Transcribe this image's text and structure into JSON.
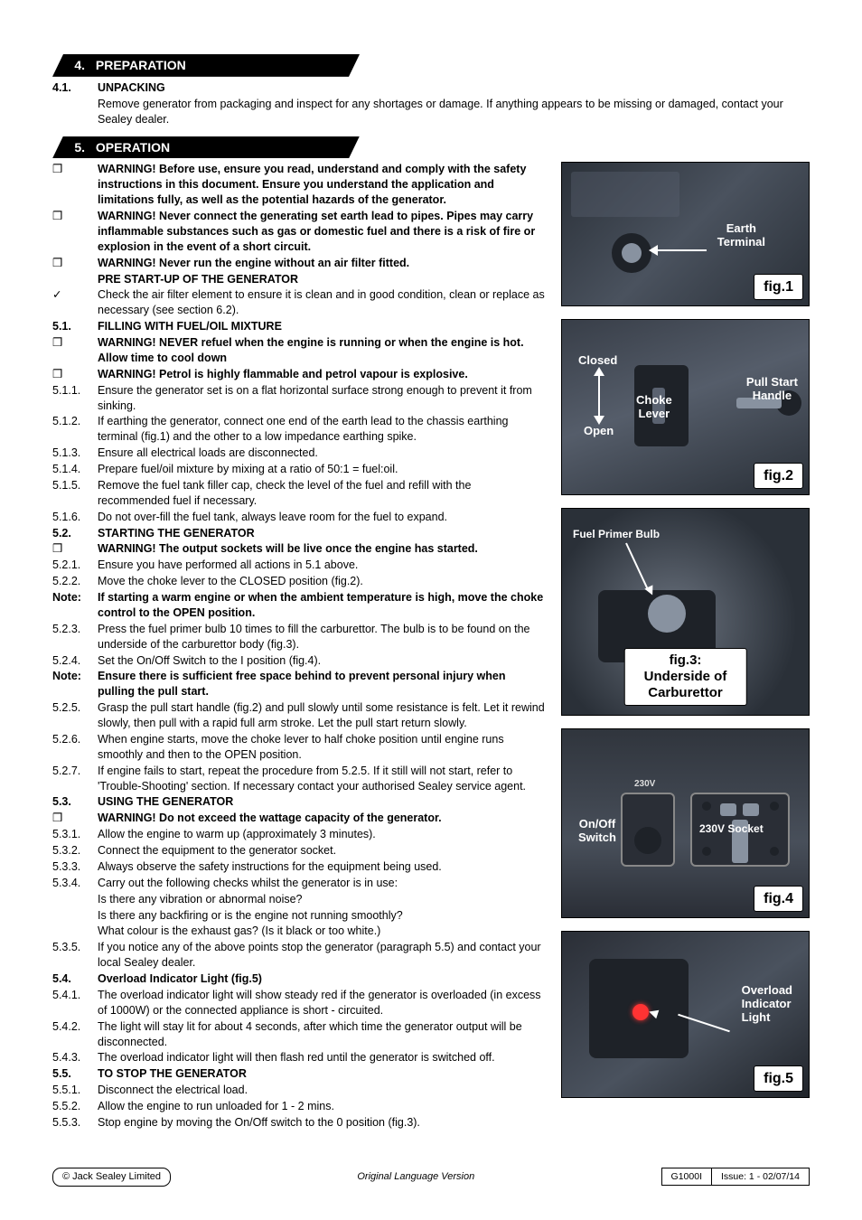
{
  "sections": {
    "s4": {
      "num": "4.",
      "title": "PREPARATION"
    },
    "s5": {
      "num": "5.",
      "title": "OPERATION"
    }
  },
  "s4_items": [
    {
      "num": "4.1.",
      "numBold": true,
      "bold": true,
      "text": "UNPACKING"
    },
    {
      "num": "",
      "text": "Remove generator from packaging and inspect for any shortages or damage. If anything appears to be missing or damaged, contact your Sealey dealer."
    }
  ],
  "s5_items": [
    {
      "num": "❒",
      "bold": true,
      "text": "WARNING! Before use, ensure you read, understand and comply with the safety instructions in this document. Ensure you understand the application and limitations fully, as well as the potential hazards of the generator."
    },
    {
      "num": "❒",
      "bold": true,
      "text": "WARNING! Never connect the generating set earth lead to pipes. Pipes may carry inflammable substances such as gas or domestic fuel and there is a risk of fire or explosion in the event of a short circuit."
    },
    {
      "num": "❒",
      "bold": true,
      "text": "WARNING! Never run the engine without an air filter fitted."
    },
    {
      "num": "",
      "bold": true,
      "text": "PRE START-UP OF THE GENERATOR"
    },
    {
      "num": "✓",
      "numClass": "check",
      "text": "Check the air filter element to ensure it is clean and in good condition, clean or replace as necessary (see section 6.2)."
    },
    {
      "num": "5.1.",
      "numBold": true,
      "bold": true,
      "text": "FILLING WITH FUEL/OIL MIXTURE"
    },
    {
      "num": "❒",
      "bold": true,
      "text": "WARNING! NEVER refuel when the engine is running or when the engine is hot.  Allow time to cool down"
    },
    {
      "num": "❒",
      "bold": true,
      "text": "WARNING! Petrol is highly flammable and petrol vapour is explosive."
    },
    {
      "num": "5.1.1.",
      "text": "Ensure the generator set is on a flat horizontal surface strong enough to prevent it from sinking."
    },
    {
      "num": "5.1.2.",
      "text": "If earthing the generator, connect one end of the earth lead to the chassis earthing terminal (fig.1) and the other to a low impedance earthing spike."
    },
    {
      "num": "5.1.3.",
      "text": "Ensure all electrical loads are disconnected."
    },
    {
      "num": "5.1.4.",
      "text": "Prepare fuel/oil mixture by mixing at a ratio of 50:1 = fuel:oil."
    },
    {
      "num": "5.1.5.",
      "text": "Remove the fuel tank filler cap, check the level of the fuel and refill with the recommended fuel if necessary."
    },
    {
      "num": "5.1.6.",
      "text": "Do not over-fill the fuel tank, always leave room for the fuel to expand."
    },
    {
      "num": "5.2.",
      "numBold": true,
      "bold": true,
      "text": "STARTING THE GENERATOR"
    },
    {
      "num": "❒",
      "bold": true,
      "text": "WARNING! The output sockets will be live once the engine has started."
    },
    {
      "num": "5.2.1.",
      "text": "Ensure you have performed all actions in 5.1 above."
    },
    {
      "num": "5.2.2.",
      "text": "Move the choke lever to the CLOSED position (fig.2)."
    },
    {
      "num": "Note:",
      "numBold": true,
      "bold": true,
      "text": "If starting a warm engine or when the ambient temperature is high, move the choke control to the OPEN position."
    },
    {
      "num": "5.2.3.",
      "text": "Press the fuel primer bulb 10 times to fill the carburettor. The bulb is to be found on the underside of the carburettor body (fig.3)."
    },
    {
      "num": "5.2.4.",
      "text": "Set the On/Off Switch to the I position (fig.4)."
    },
    {
      "num": "Note:",
      "numBold": true,
      "bold": true,
      "text": "Ensure there is sufficient free space behind to prevent personal injury when pulling the pull start."
    },
    {
      "num": "5.2.5.",
      "text": "Grasp the pull start handle (fig.2) and pull slowly until some resistance is felt. Let it rewind slowly, then pull with a rapid full arm stroke. Let the pull start return slowly."
    },
    {
      "num": "5.2.6.",
      "text": "When engine starts, move the choke lever to half choke position until engine runs smoothly and then to the OPEN position."
    },
    {
      "num": "5.2.7.",
      "text": "If engine fails to start, repeat the procedure from 5.2.5. If it still will not start, refer to 'Trouble-Shooting' section. If necessary contact your authorised Sealey service agent."
    },
    {
      "num": "5.3.",
      "numBold": true,
      "bold": true,
      "text": "USING THE GENERATOR"
    },
    {
      "num": "❒",
      "bold": true,
      "text": "WARNING! Do not exceed the wattage capacity of the generator."
    },
    {
      "num": "5.3.1.",
      "text": "Allow the engine to warm up (approximately 3 minutes)."
    },
    {
      "num": "5.3.2.",
      "text": "Connect the equipment to the generator socket."
    },
    {
      "num": "5.3.3.",
      "text": "Always observe the safety instructions for the equipment being used."
    },
    {
      "num": "5.3.4.",
      "text": "Carry out the following checks whilst the generator is in use:"
    },
    {
      "num": "",
      "text": "Is there any vibration or abnormal noise?"
    },
    {
      "num": "",
      "text": "Is there any backfiring or is the engine not running smoothly?"
    },
    {
      "num": "",
      "text": "What colour is the exhaust gas? (Is it black or too white.)"
    },
    {
      "num": "5.3.5.",
      "text": "If you notice any of the above points stop the generator (paragraph 5.5) and contact your local Sealey dealer."
    },
    {
      "num": "5.4.",
      "numBold": true,
      "bold": true,
      "text": "Overload Indicator Light (fig.5)"
    },
    {
      "num": "5.4.1.",
      "text": "The overload indicator light will show steady red if the generator is overloaded (in excess of 1000W) or the connected appliance is short - circuited."
    },
    {
      "num": "5.4.2.",
      "text": "The light will stay lit for about 4 seconds, after which time the generator output will be disconnected."
    },
    {
      "num": "5.4.3.",
      "text": "The overload indicator light will then flash red until the generator is switched off."
    },
    {
      "num": "5.5.",
      "numBold": true,
      "bold": true,
      "text": "TO STOP THE GENERATOR"
    },
    {
      "num": "5.5.1.",
      "text": "Disconnect the electrical load."
    },
    {
      "num": "5.5.2.",
      "text": "Allow the engine to run unloaded for 1 - 2 mins."
    },
    {
      "num": "5.5.3.",
      "text": "Stop engine by moving the On/Off switch to the 0 position (fig.3)."
    }
  ],
  "figs": {
    "f1": {
      "label": "fig.1",
      "text1": "Earth\nTerminal"
    },
    "f2": {
      "label": "fig.2",
      "closed": "Closed",
      "open": "Open",
      "choke": "Choke\nLever",
      "pull": "Pull Start\nHandle"
    },
    "f3": {
      "label": "fig.3: Underside of\nCarburettor",
      "text1": "Fuel Primer Bulb"
    },
    "f4": {
      "label": "fig.4",
      "onoff": "On/Off\nSwitch",
      "socket": "230V Socket",
      "v230": "230V"
    },
    "f5": {
      "label": "fig.5",
      "overload": "Overload\nIndicator\nLight"
    }
  },
  "footer": {
    "left": "© Jack Sealey Limited",
    "center": "Original Language Version",
    "model": "G1000I",
    "issue": "Issue: 1 - 02/07/14"
  }
}
